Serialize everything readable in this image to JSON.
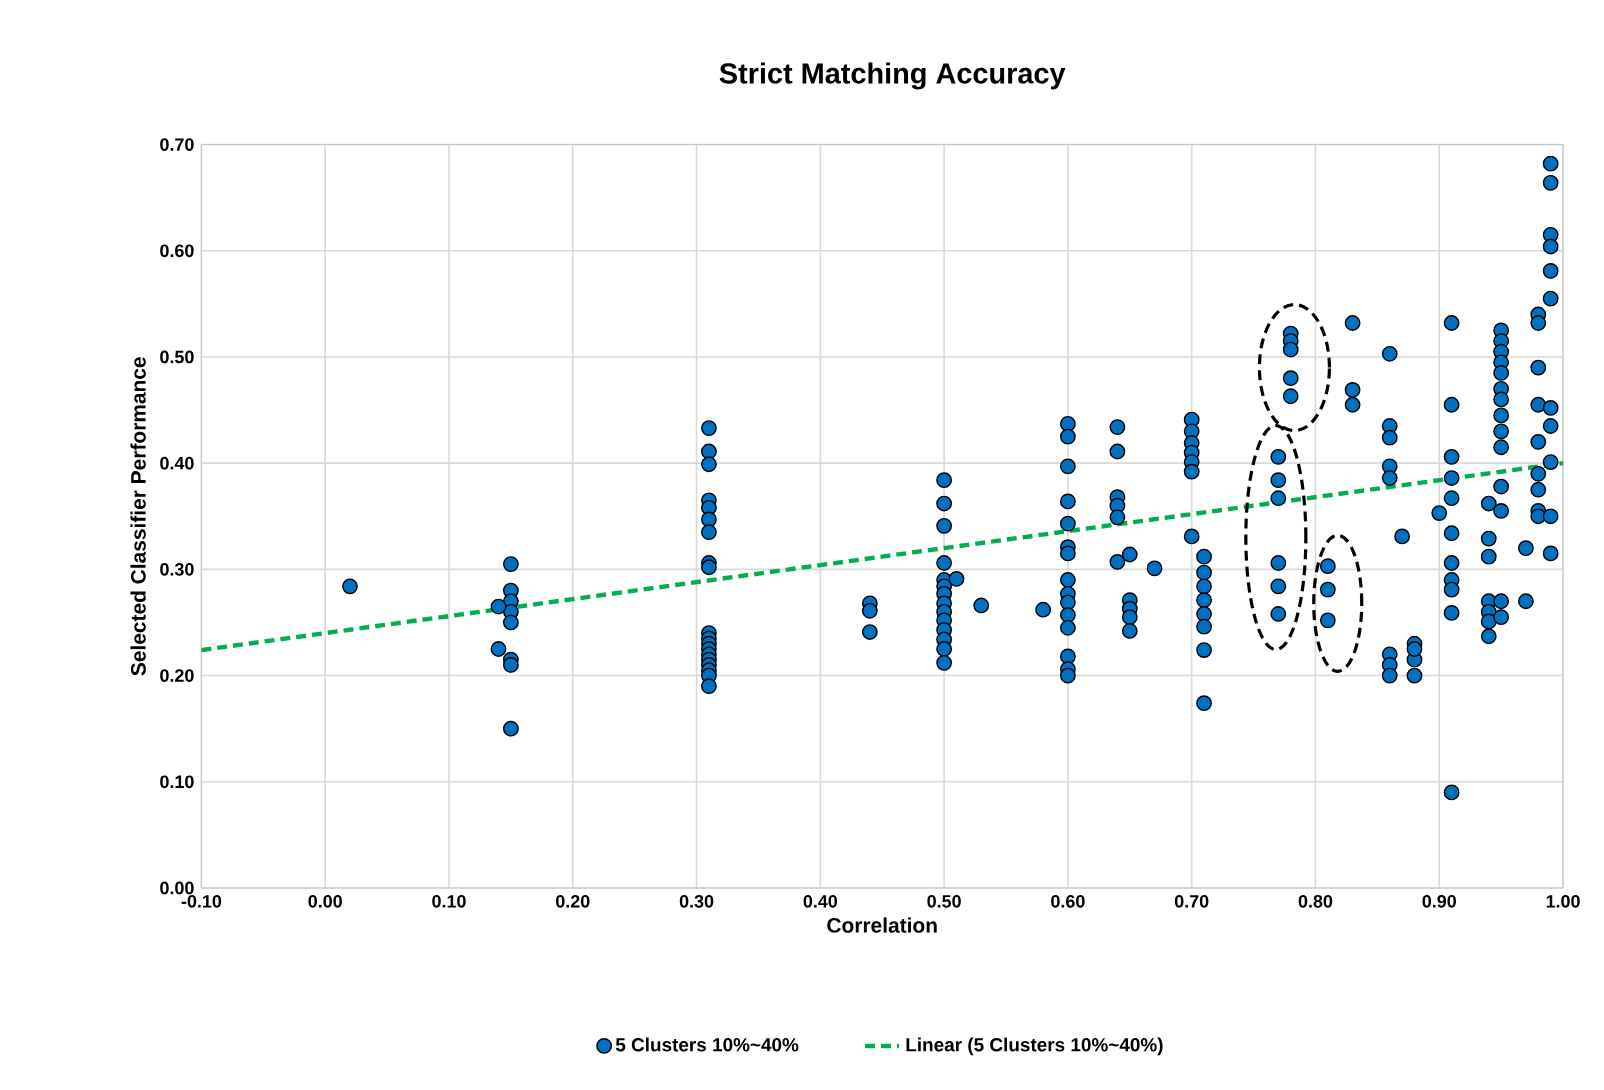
{
  "chart_data": {
    "type": "scatter",
    "title": "Strict Matching Accuracy",
    "xlabel": "Correlation",
    "ylabel": "Selected Classifier Performance",
    "xlim": [
      -0.1,
      1.0
    ],
    "xticks": [
      {
        "value": -0.1,
        "label": "-0.10"
      },
      {
        "value": 0.0,
        "label": "0.00"
      },
      {
        "value": 0.1,
        "label": "0.10"
      },
      {
        "value": 0.2,
        "label": "0.20"
      },
      {
        "value": 0.3,
        "label": "0.30"
      },
      {
        "value": 0.4,
        "label": "0.40"
      },
      {
        "value": 0.5,
        "label": "0.50"
      },
      {
        "value": 0.6,
        "label": "0.60"
      },
      {
        "value": 0.7,
        "label": "0.70"
      },
      {
        "value": 0.8,
        "label": "0.80"
      },
      {
        "value": 0.9,
        "label": "0.90"
      },
      {
        "value": 1.0,
        "label": "1.00"
      }
    ],
    "ylim": [
      0.0,
      0.7
    ],
    "yticks": [
      {
        "value": 0.0,
        "label": "0.00"
      },
      {
        "value": 0.1,
        "label": "0.10"
      },
      {
        "value": 0.2,
        "label": "0.20"
      },
      {
        "value": 0.3,
        "label": "0.30"
      },
      {
        "value": 0.4,
        "label": "0.40"
      },
      {
        "value": 0.5,
        "label": "0.50"
      },
      {
        "value": 0.6,
        "label": "0.60"
      },
      {
        "value": 0.7,
        "label": "0.70"
      }
    ],
    "grid": true,
    "legend": "bottom",
    "marker": "circle",
    "series": [
      {
        "name": "5 Clusters 10%~40%",
        "type": "scatter",
        "color": "#0070c0",
        "x": [
          0.02,
          0.15,
          0.15,
          0.15,
          0.15,
          0.15,
          0.15,
          0.15,
          0.15,
          0.14,
          0.14,
          0.31,
          0.31,
          0.31,
          0.31,
          0.31,
          0.31,
          0.31,
          0.31,
          0.31,
          0.31,
          0.31,
          0.31,
          0.31,
          0.31,
          0.31,
          0.31,
          0.31,
          0.31,
          0.31,
          0.44,
          0.44,
          0.44,
          0.5,
          0.5,
          0.5,
          0.5,
          0.5,
          0.5,
          0.5,
          0.5,
          0.5,
          0.5,
          0.5,
          0.5,
          0.5,
          0.5,
          0.51,
          0.53,
          0.58,
          0.6,
          0.6,
          0.6,
          0.6,
          0.6,
          0.6,
          0.6,
          0.6,
          0.6,
          0.6,
          0.6,
          0.6,
          0.6,
          0.6,
          0.6,
          0.64,
          0.64,
          0.64,
          0.64,
          0.64,
          0.64,
          0.65,
          0.65,
          0.65,
          0.65,
          0.65,
          0.67,
          0.7,
          0.7,
          0.7,
          0.7,
          0.7,
          0.7,
          0.7,
          0.71,
          0.71,
          0.71,
          0.71,
          0.71,
          0.71,
          0.71,
          0.71,
          0.77,
          0.77,
          0.77,
          0.77,
          0.77,
          0.77,
          0.78,
          0.78,
          0.78,
          0.78,
          0.78,
          0.81,
          0.81,
          0.81,
          0.83,
          0.83,
          0.83,
          0.86,
          0.86,
          0.86,
          0.86,
          0.86,
          0.86,
          0.86,
          0.86,
          0.87,
          0.88,
          0.88,
          0.88,
          0.88,
          0.9,
          0.91,
          0.91,
          0.91,
          0.91,
          0.91,
          0.91,
          0.91,
          0.91,
          0.91,
          0.91,
          0.91,
          0.94,
          0.94,
          0.94,
          0.94,
          0.94,
          0.94,
          0.94,
          0.95,
          0.95,
          0.95,
          0.95,
          0.95,
          0.95,
          0.95,
          0.95,
          0.95,
          0.95,
          0.95,
          0.95,
          0.95,
          0.95,
          0.97,
          0.97,
          0.98,
          0.98,
          0.98,
          0.98,
          0.98,
          0.98,
          0.98,
          0.98,
          0.98,
          0.99,
          0.99,
          0.99,
          0.99,
          0.99,
          0.99,
          0.99,
          0.99,
          0.99,
          0.99,
          0.99
        ],
        "values": [
          0.284,
          0.305,
          0.28,
          0.27,
          0.26,
          0.25,
          0.215,
          0.21,
          0.15,
          0.265,
          0.225,
          0.433,
          0.411,
          0.399,
          0.365,
          0.358,
          0.347,
          0.335,
          0.306,
          0.302,
          0.24,
          0.235,
          0.23,
          0.225,
          0.22,
          0.215,
          0.21,
          0.205,
          0.2,
          0.19,
          0.268,
          0.261,
          0.241,
          0.384,
          0.362,
          0.341,
          0.306,
          0.29,
          0.284,
          0.277,
          0.268,
          0.26,
          0.252,
          0.243,
          0.234,
          0.225,
          0.212,
          0.291,
          0.266,
          0.262,
          0.437,
          0.425,
          0.397,
          0.364,
          0.343,
          0.321,
          0.315,
          0.29,
          0.277,
          0.269,
          0.257,
          0.245,
          0.218,
          0.206,
          0.2,
          0.434,
          0.411,
          0.368,
          0.36,
          0.349,
          0.307,
          0.314,
          0.271,
          0.263,
          0.255,
          0.242,
          0.301,
          0.441,
          0.43,
          0.419,
          0.41,
          0.401,
          0.392,
          0.331,
          0.312,
          0.297,
          0.284,
          0.271,
          0.258,
          0.246,
          0.224,
          0.174,
          0.406,
          0.384,
          0.367,
          0.306,
          0.284,
          0.258,
          0.522,
          0.515,
          0.507,
          0.48,
          0.463,
          0.303,
          0.281,
          0.252,
          0.532,
          0.469,
          0.455,
          0.503,
          0.435,
          0.424,
          0.397,
          0.386,
          0.22,
          0.21,
          0.2,
          0.331,
          0.23,
          0.215,
          0.2,
          0.225,
          0.353,
          0.532,
          0.455,
          0.09,
          0.406,
          0.386,
          0.367,
          0.334,
          0.306,
          0.29,
          0.281,
          0.259,
          0.362,
          0.329,
          0.312,
          0.27,
          0.26,
          0.251,
          0.237,
          0.525,
          0.515,
          0.505,
          0.495,
          0.485,
          0.47,
          0.46,
          0.445,
          0.43,
          0.415,
          0.378,
          0.355,
          0.27,
          0.255,
          0.32,
          0.27,
          0.54,
          0.532,
          0.49,
          0.455,
          0.42,
          0.39,
          0.375,
          0.355,
          0.35,
          0.682,
          0.664,
          0.615,
          0.604,
          0.581,
          0.555,
          0.452,
          0.435,
          0.401,
          0.35,
          0.315
        ]
      },
      {
        "name": "Linear (5 Clusters 10%~40%)",
        "type": "line",
        "marker": "none",
        "line_style": "dashed",
        "color": "#00b050",
        "x": [
          -0.1,
          1.0
        ],
        "values": [
          0.224,
          0.4
        ]
      }
    ]
  }
}
